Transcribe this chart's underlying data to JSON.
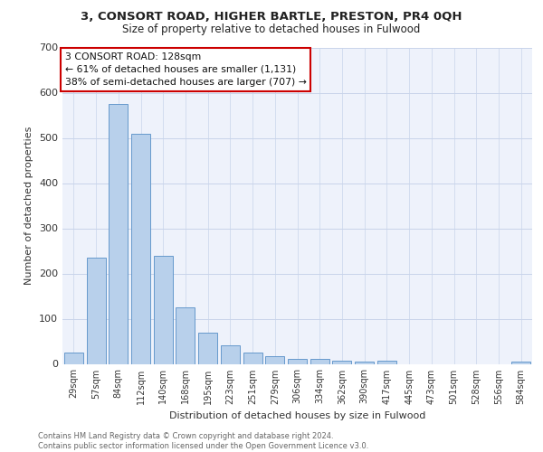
{
  "title1": "3, CONSORT ROAD, HIGHER BARTLE, PRESTON, PR4 0QH",
  "title2": "Size of property relative to detached houses in Fulwood",
  "xlabel": "Distribution of detached houses by size in Fulwood",
  "ylabel": "Number of detached properties",
  "bar_labels": [
    "29sqm",
    "57sqm",
    "84sqm",
    "112sqm",
    "140sqm",
    "168sqm",
    "195sqm",
    "223sqm",
    "251sqm",
    "279sqm",
    "306sqm",
    "334sqm",
    "362sqm",
    "390sqm",
    "417sqm",
    "445sqm",
    "473sqm",
    "501sqm",
    "528sqm",
    "556sqm",
    "584sqm"
  ],
  "bar_values": [
    25,
    235,
    575,
    510,
    240,
    125,
    70,
    42,
    25,
    17,
    12,
    12,
    8,
    5,
    8,
    0,
    0,
    0,
    0,
    0,
    6
  ],
  "bar_color": "#b8d0eb",
  "bar_edge_color": "#6699cc",
  "bg_color": "#eef2fb",
  "annotation_text": "3 CONSORT ROAD: 128sqm\n← 61% of detached houses are smaller (1,131)\n38% of semi-detached houses are larger (707) →",
  "annotation_box_color": "#ffffff",
  "annotation_box_edge": "#cc0000",
  "footer": "Contains HM Land Registry data © Crown copyright and database right 2024.\nContains public sector information licensed under the Open Government Licence v3.0.",
  "ylim": [
    0,
    700
  ],
  "yticks": [
    0,
    100,
    200,
    300,
    400,
    500,
    600,
    700
  ],
  "grid_color": "#c8d4ea",
  "title1_fontsize": 9.5,
  "title2_fontsize": 8.5,
  "footer_fontsize": 6.0
}
